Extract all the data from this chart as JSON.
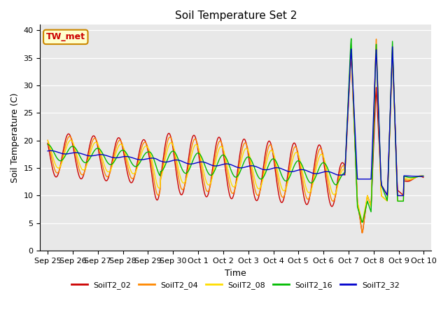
{
  "title": "Soil Temperature Set 2",
  "xlabel": "Time",
  "ylabel": "Soil Temperature (C)",
  "ylim": [
    0,
    41
  ],
  "yticks": [
    0,
    5,
    10,
    15,
    20,
    25,
    30,
    35,
    40
  ],
  "bg_color": "#e8e8e8",
  "annotation_text": "TW_met",
  "annotation_color": "#cc0000",
  "annotation_bg": "#ffffcc",
  "annotation_border": "#cc8800",
  "series_names": [
    "SoilT2_02",
    "SoilT2_04",
    "SoilT2_08",
    "SoilT2_16",
    "SoilT2_32"
  ],
  "colors": {
    "SoilT2_02": "#cc0000",
    "SoilT2_04": "#ff8800",
    "SoilT2_08": "#ffdd00",
    "SoilT2_16": "#00bb00",
    "SoilT2_32": "#0000cc"
  },
  "xtick_labels": [
    "Sep 25",
    "Sep 26",
    "Sep 27",
    "Sep 28",
    "Sep 29",
    "Sep 30",
    "Oct 1",
    "Oct 2",
    "Oct 3",
    "Oct 4",
    "Oct 5",
    "Oct 6",
    "Oct 7",
    "Oct 8",
    "Oct 9",
    "Oct 10"
  ],
  "n_per_day": 48
}
